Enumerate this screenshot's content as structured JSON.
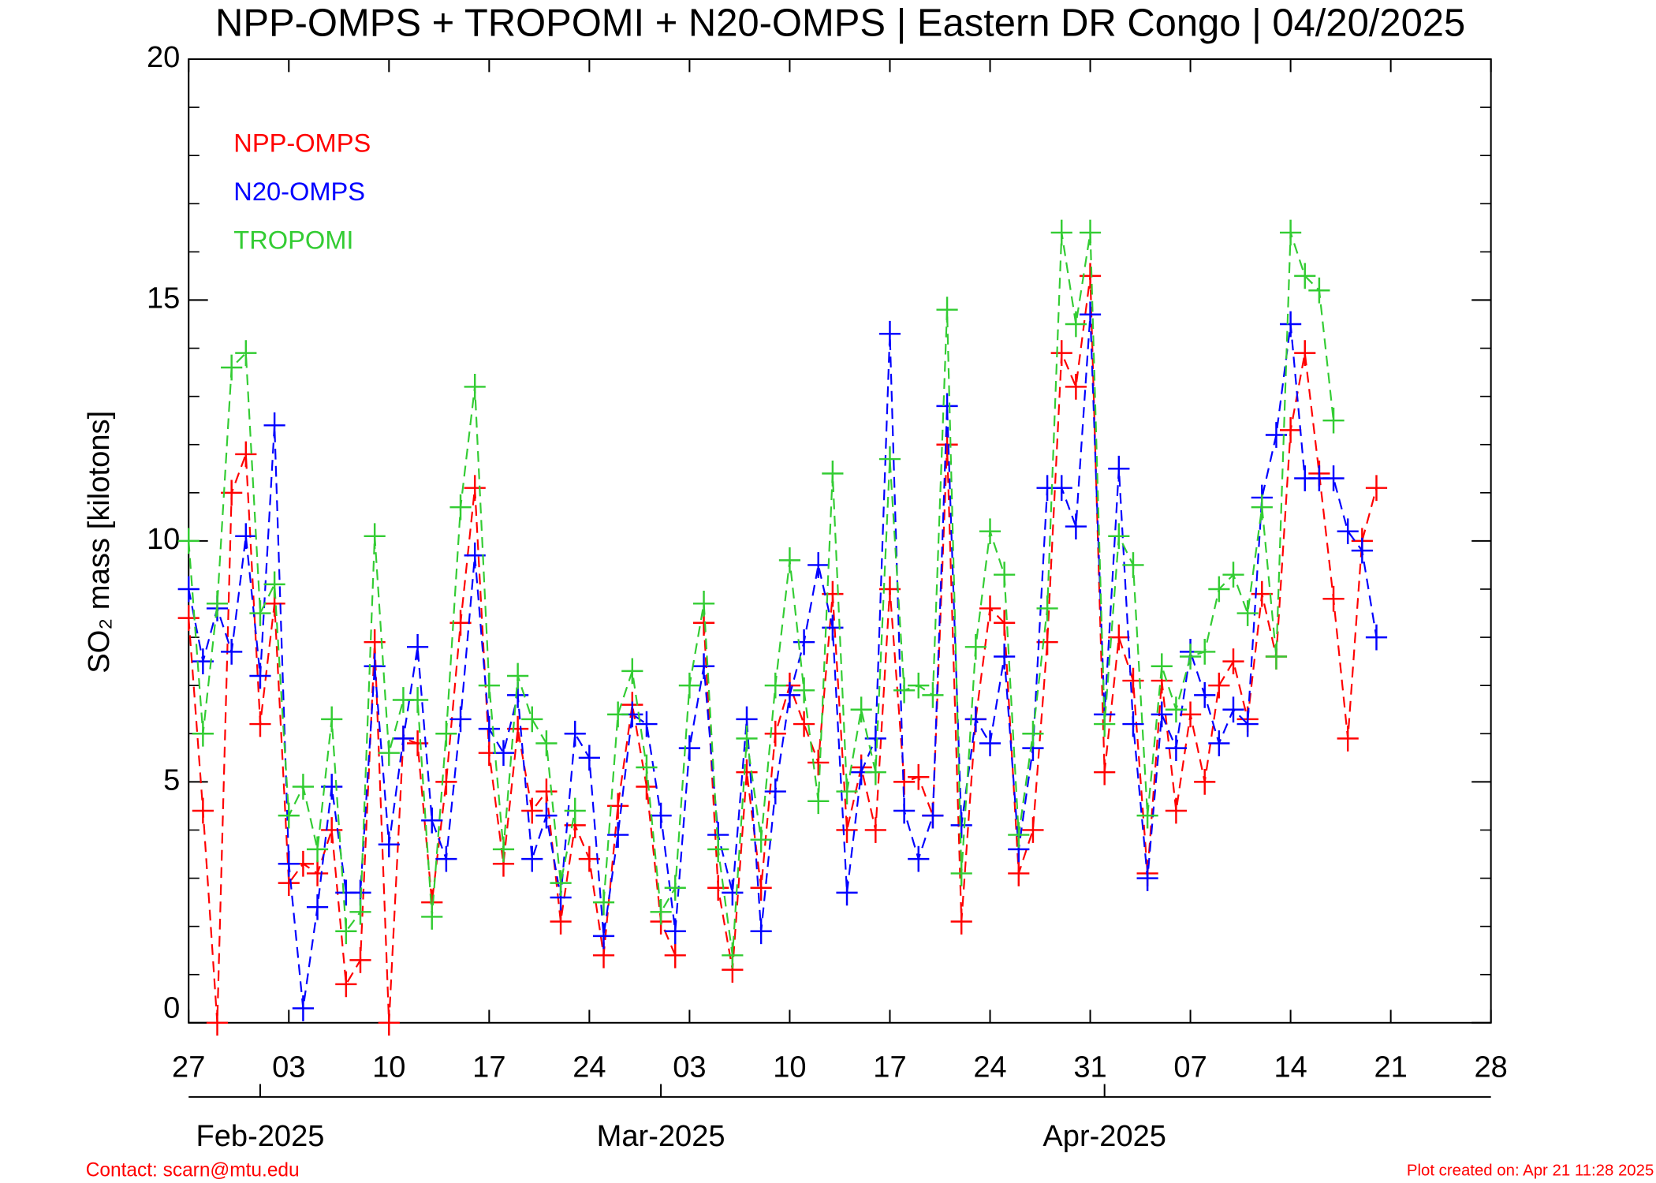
{
  "chart_data": {
    "type": "line",
    "title": "NPP-OMPS + TROPOMI + N20-OMPS | Eastern DR Congo | 04/20/2025",
    "y_label": "SO₂ mass [kilotons]",
    "x": [
      "2025-01-27",
      "2025-01-28",
      "2025-01-29",
      "2025-01-30",
      "2025-01-31",
      "2025-02-01",
      "2025-02-02",
      "2025-02-03",
      "2025-02-04",
      "2025-02-05",
      "2025-02-06",
      "2025-02-07",
      "2025-02-08",
      "2025-02-09",
      "2025-02-10",
      "2025-02-11",
      "2025-02-12",
      "2025-02-13",
      "2025-02-14",
      "2025-02-15",
      "2025-02-16",
      "2025-02-17",
      "2025-02-18",
      "2025-02-19",
      "2025-02-20",
      "2025-02-21",
      "2025-02-22",
      "2025-02-23",
      "2025-02-24",
      "2025-02-25",
      "2025-02-26",
      "2025-02-27",
      "2025-02-28",
      "2025-03-01",
      "2025-03-02",
      "2025-03-03",
      "2025-03-04",
      "2025-03-05",
      "2025-03-06",
      "2025-03-07",
      "2025-03-08",
      "2025-03-09",
      "2025-03-10",
      "2025-03-11",
      "2025-03-12",
      "2025-03-13",
      "2025-03-14",
      "2025-03-15",
      "2025-03-16",
      "2025-03-17",
      "2025-03-18",
      "2025-03-19",
      "2025-03-20",
      "2025-03-21",
      "2025-03-22",
      "2025-03-23",
      "2025-03-24",
      "2025-03-25",
      "2025-03-26",
      "2025-03-27",
      "2025-03-28",
      "2025-03-29",
      "2025-03-30",
      "2025-03-31",
      "2025-04-01",
      "2025-04-02",
      "2025-04-03",
      "2025-04-04",
      "2025-04-05",
      "2025-04-06",
      "2025-04-07",
      "2025-04-08",
      "2025-04-09",
      "2025-04-10",
      "2025-04-11",
      "2025-04-12",
      "2025-04-13",
      "2025-04-14",
      "2025-04-15",
      "2025-04-16",
      "2025-04-17",
      "2025-04-18",
      "2025-04-19",
      "2025-04-20"
    ],
    "series": [
      {
        "name": "NPP-OMPS",
        "color": "#ff0000",
        "values": [
          8.4,
          4.4,
          0,
          11.0,
          11.8,
          6.2,
          8.7,
          2.9,
          3.3,
          3.1,
          4.0,
          0.8,
          1.3,
          7.9,
          0,
          5.9,
          5.8,
          2.5,
          5.0,
          8.3,
          11.1,
          5.6,
          3.3,
          6.1,
          4.4,
          4.8,
          2.1,
          4.1,
          3.4,
          1.4,
          4.5,
          6.6,
          4.9,
          2.1,
          1.4,
          null,
          8.3,
          2.8,
          1.1,
          5.2,
          2.8,
          6.0,
          7.0,
          6.2,
          5.4,
          8.9,
          4.0,
          5.3,
          4.0,
          9.0,
          5.0,
          5.1,
          4.3,
          12.0,
          2.1,
          6.3,
          8.6,
          8.3,
          3.1,
          4.0,
          7.9,
          13.9,
          13.2,
          15.5,
          5.2,
          8.0,
          7.1,
          3.1,
          7.1,
          4.4,
          6.4,
          5.0,
          7.0,
          7.5,
          6.3,
          8.9,
          7.6,
          12.3,
          13.9,
          11.4,
          8.8,
          5.9,
          10.0,
          11.1
        ]
      },
      {
        "name": "N20-OMPS",
        "color": "#0000ff",
        "values": [
          9.0,
          7.5,
          8.6,
          7.7,
          10.1,
          7.2,
          12.4,
          3.3,
          0.3,
          2.4,
          4.9,
          2.7,
          2.7,
          7.4,
          3.7,
          5.9,
          7.8,
          4.2,
          3.4,
          6.3,
          9.7,
          6.1,
          5.6,
          6.8,
          3.4,
          4.3,
          2.6,
          6.0,
          5.5,
          1.8,
          3.9,
          6.4,
          6.2,
          4.3,
          1.9,
          5.7,
          7.4,
          3.9,
          2.7,
          6.3,
          1.9,
          4.8,
          6.8,
          7.9,
          9.5,
          8.2,
          2.7,
          5.2,
          5.9,
          14.3,
          4.4,
          3.4,
          4.3,
          12.8,
          4.1,
          6.3,
          5.8,
          7.6,
          3.6,
          5.7,
          11.1,
          11.1,
          10.3,
          14.7,
          6.4,
          11.5,
          6.2,
          3.0,
          6.4,
          5.7,
          7.7,
          6.8,
          5.8,
          6.5,
          6.2,
          10.9,
          12.2,
          14.5,
          11.3,
          11.3,
          11.3,
          10.2,
          9.8,
          8.0
        ]
      },
      {
        "name": "TROPOMI",
        "color": "#33cc33",
        "values": [
          10.0,
          6.0,
          8.7,
          13.6,
          13.9,
          8.5,
          9.1,
          4.3,
          4.9,
          3.6,
          6.3,
          1.9,
          2.3,
          10.1,
          5.6,
          6.7,
          6.7,
          2.2,
          6.0,
          10.7,
          13.2,
          7.0,
          3.6,
          7.2,
          6.3,
          5.8,
          2.9,
          4.4,
          null,
          2.5,
          6.4,
          7.3,
          5.3,
          2.3,
          2.8,
          7.0,
          8.7,
          3.6,
          1.4,
          5.9,
          3.8,
          7.0,
          9.6,
          6.9,
          4.6,
          11.4,
          4.8,
          6.5,
          5.2,
          11.7,
          6.9,
          7.0,
          6.8,
          14.8,
          3.1,
          7.8,
          10.2,
          9.3,
          3.9,
          6.0,
          8.6,
          16.4,
          14.5,
          16.4,
          6.2,
          10.1,
          9.5,
          4.3,
          7.4,
          6.5,
          7.6,
          7.7,
          9.0,
          9.3,
          8.5,
          10.7,
          7.6,
          16.4,
          15.5,
          15.2,
          12.5,
          null,
          null,
          null
        ]
      }
    ],
    "xlim": [
      "2025-01-27",
      "2025-04-28"
    ],
    "xticks": [
      {
        "value": "2025-01-27",
        "label": "27"
      },
      {
        "value": "2025-02-03",
        "label": "03"
      },
      {
        "value": "2025-02-10",
        "label": "10"
      },
      {
        "value": "2025-02-17",
        "label": "17"
      },
      {
        "value": "2025-02-24",
        "label": "24"
      },
      {
        "value": "2025-03-03",
        "label": "03"
      },
      {
        "value": "2025-03-10",
        "label": "10"
      },
      {
        "value": "2025-03-17",
        "label": "17"
      },
      {
        "value": "2025-03-24",
        "label": "24"
      },
      {
        "value": "2025-03-31",
        "label": "31"
      },
      {
        "value": "2025-04-07",
        "label": "07"
      },
      {
        "value": "2025-04-14",
        "label": "14"
      },
      {
        "value": "2025-04-21",
        "label": "21"
      },
      {
        "value": "2025-04-28",
        "label": "28"
      }
    ],
    "month_ticks": [
      {
        "value": "2025-02-01",
        "label": "Feb-2025"
      },
      {
        "value": "2025-03-01",
        "label": "Mar-2025"
      },
      {
        "value": "2025-04-01",
        "label": "Apr-2025"
      }
    ],
    "ylim": [
      0,
      20
    ],
    "yticks": [
      0,
      5,
      10,
      15,
      20
    ],
    "yminorticks": [
      1,
      2,
      3,
      4,
      6,
      7,
      8,
      9,
      11,
      12,
      13,
      14,
      16,
      17,
      18,
      19
    ],
    "legend": "upper left",
    "contact": "Contact: scarn@mtu.edu",
    "created": "Plot created on: Apr 21 11:28 2025"
  }
}
